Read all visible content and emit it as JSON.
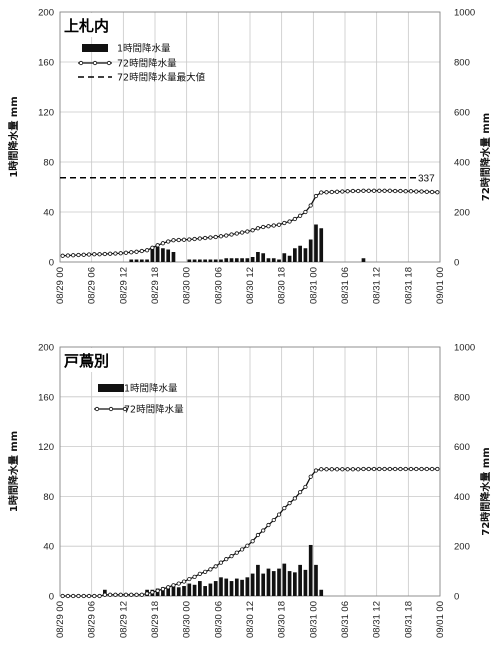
{
  "chart_data": [
    {
      "type": "bar",
      "title": "上札内",
      "xlabel": "",
      "ylabel": "1時間降水量 mm",
      "y2label": "72時間降水量 mm",
      "ylim": [
        0,
        200
      ],
      "y2lim": [
        0,
        1000
      ],
      "yticks": [
        "0",
        "40",
        "80",
        "120",
        "160",
        "200"
      ],
      "y2ticks": [
        "0",
        "200",
        "400",
        "600",
        "800",
        "1000"
      ],
      "xticks": [
        "08/29 00",
        "08/29 06",
        "08/29 12",
        "08/29 18",
        "08/30 00",
        "08/30 06",
        "08/30 12",
        "08/30 18",
        "08/31 00",
        "08/31 06",
        "08/31 12",
        "08/31 18",
        "09/01 00"
      ],
      "grid": true,
      "legend": [
        "1時間降水量",
        "72時間降水量",
        "72時間降水量最大値"
      ],
      "annotation": "337",
      "series": [
        {
          "name": "1時間降水量",
          "kind": "bar",
          "axis": "left",
          "values": [
            0,
            0,
            0,
            0,
            0,
            0,
            0,
            0,
            0,
            0,
            0,
            0,
            0,
            2,
            2,
            2,
            2,
            12,
            12,
            11,
            10,
            8,
            0,
            0,
            2,
            2,
            2,
            2,
            2,
            2,
            2,
            3,
            3,
            3,
            3,
            3,
            4,
            8,
            7,
            3,
            3,
            2,
            7,
            5,
            11,
            13,
            11,
            18,
            30,
            27,
            0,
            0,
            0,
            0,
            0,
            0,
            0,
            3,
            0,
            0,
            0,
            0,
            0,
            0,
            0,
            0,
            0,
            0,
            0,
            0,
            0,
            0
          ]
        },
        {
          "name": "72時間降水量",
          "kind": "line",
          "axis": "right",
          "values": [
            25,
            26,
            27,
            28,
            29,
            30,
            31,
            31,
            32,
            33,
            34,
            35,
            37,
            39,
            41,
            44,
            47,
            57,
            67,
            75,
            82,
            87,
            88,
            89,
            90,
            92,
            94,
            96,
            98,
            100,
            103,
            106,
            110,
            114,
            118,
            122,
            127,
            135,
            140,
            143,
            146,
            149,
            156,
            162,
            172,
            185,
            200,
            226,
            264,
            278,
            279,
            280,
            281,
            282,
            283,
            284,
            284,
            285,
            285,
            285,
            285,
            285,
            285,
            284,
            284,
            283,
            283,
            282,
            282,
            281,
            280,
            279
          ]
        },
        {
          "name": "72時間降水量最大値",
          "kind": "hline",
          "axis": "right",
          "value": 337
        }
      ]
    },
    {
      "type": "bar",
      "title": "戸蔦別",
      "xlabel": "",
      "ylabel": "1時間降水量 mm",
      "y2label": "72時間降水量 mm",
      "ylim": [
        0,
        200
      ],
      "y2lim": [
        0,
        1000
      ],
      "yticks": [
        "0",
        "40",
        "80",
        "120",
        "160",
        "200"
      ],
      "y2ticks": [
        "0",
        "200",
        "400",
        "600",
        "800",
        "1000"
      ],
      "xticks": [
        "08/29 00",
        "08/29 06",
        "08/29 12",
        "08/29 18",
        "08/30 00",
        "08/30 06",
        "08/30 12",
        "08/30 18",
        "08/31 00",
        "08/31 06",
        "08/31 12",
        "08/31 18",
        "09/01 00"
      ],
      "grid": true,
      "legend": [
        "1時間降水量",
        "72時間降水量"
      ],
      "series": [
        {
          "name": "1時間降水量",
          "kind": "bar",
          "axis": "left",
          "values": [
            0,
            0,
            0,
            0,
            0,
            0,
            0,
            0,
            5,
            0,
            0,
            0,
            0,
            0,
            0,
            0,
            5,
            5,
            6,
            7,
            7,
            8,
            7,
            8,
            10,
            9,
            12,
            8,
            10,
            12,
            15,
            14,
            12,
            14,
            13,
            15,
            18,
            25,
            18,
            22,
            20,
            22,
            26,
            20,
            19,
            25,
            21,
            41,
            25,
            5,
            0,
            0,
            0,
            0,
            0,
            0,
            0,
            0,
            0,
            0,
            0,
            0,
            0,
            0,
            0,
            0,
            0,
            0,
            0,
            0,
            0,
            0
          ]
        },
        {
          "name": "72時間降水量",
          "kind": "line",
          "axis": "right",
          "values": [
            0,
            0,
            0,
            0,
            0,
            0,
            0,
            0,
            5,
            5,
            5,
            5,
            5,
            5,
            5,
            5,
            10,
            15,
            21,
            28,
            35,
            43,
            50,
            58,
            68,
            77,
            89,
            97,
            107,
            119,
            134,
            148,
            160,
            174,
            187,
            202,
            220,
            245,
            263,
            285,
            305,
            327,
            353,
            373,
            392,
            417,
            438,
            479,
            504,
            509,
            509,
            509,
            509,
            509,
            509,
            509,
            509,
            510,
            510,
            510,
            510,
            510,
            510,
            510,
            510,
            510,
            510,
            510,
            510,
            510,
            510,
            510
          ]
        }
      ]
    }
  ]
}
